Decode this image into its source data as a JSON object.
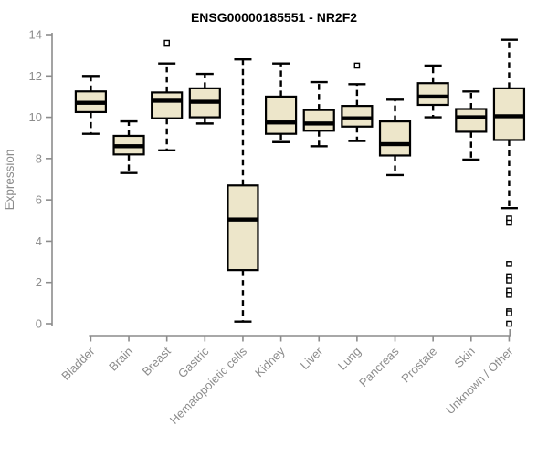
{
  "chart_data": {
    "type": "boxplot",
    "title": "ENSG00000185551 - NR2F2",
    "ylabel": "Expression",
    "xlabel": "",
    "ylim": [
      0,
      14
    ],
    "yticks": [
      0,
      2,
      4,
      6,
      8,
      10,
      12,
      14
    ],
    "grid": false,
    "legend": false,
    "categories": [
      "Bladder",
      "Brain",
      "Breast",
      "Gastric",
      "Hematopoietic cells",
      "Kidney",
      "Liver",
      "Lung",
      "Pancreas",
      "Prostate",
      "Skin",
      "Unknown / Other"
    ],
    "series": [
      {
        "category": "Bladder",
        "low": 9.2,
        "q1": 10.25,
        "median": 10.7,
        "q3": 11.25,
        "high": 12.0,
        "outliers": []
      },
      {
        "category": "Brain",
        "low": 7.3,
        "q1": 8.2,
        "median": 8.6,
        "q3": 9.1,
        "high": 9.8,
        "outliers": []
      },
      {
        "category": "Breast",
        "low": 8.4,
        "q1": 9.95,
        "median": 10.8,
        "q3": 11.2,
        "high": 12.6,
        "outliers": [
          13.6
        ]
      },
      {
        "category": "Gastric",
        "low": 9.7,
        "q1": 10.0,
        "median": 10.75,
        "q3": 11.4,
        "high": 12.1,
        "outliers": []
      },
      {
        "category": "Hematopoietic cells",
        "low": 0.1,
        "q1": 2.6,
        "median": 5.05,
        "q3": 6.7,
        "high": 12.8,
        "outliers": []
      },
      {
        "category": "Kidney",
        "low": 8.8,
        "q1": 9.2,
        "median": 9.75,
        "q3": 11.0,
        "high": 12.6,
        "outliers": []
      },
      {
        "category": "Liver",
        "low": 8.6,
        "q1": 9.35,
        "median": 9.7,
        "q3": 10.35,
        "high": 11.7,
        "outliers": []
      },
      {
        "category": "Lung",
        "low": 8.85,
        "q1": 9.55,
        "median": 9.95,
        "q3": 10.55,
        "high": 11.6,
        "outliers": [
          12.5
        ]
      },
      {
        "category": "Pancreas",
        "low": 7.2,
        "q1": 8.15,
        "median": 8.7,
        "q3": 9.8,
        "high": 10.85,
        "outliers": []
      },
      {
        "category": "Prostate",
        "low": 10.0,
        "q1": 10.6,
        "median": 11.0,
        "q3": 11.65,
        "high": 12.5,
        "outliers": []
      },
      {
        "category": "Skin",
        "low": 7.95,
        "q1": 9.3,
        "median": 10.0,
        "q3": 10.4,
        "high": 11.25,
        "outliers": []
      },
      {
        "category": "Unknown / Other",
        "low": 5.6,
        "q1": 8.9,
        "median": 10.05,
        "q3": 11.4,
        "high": 13.75,
        "outliers": [
          5.1,
          4.9,
          2.9,
          2.3,
          2.1,
          1.6,
          1.4,
          0.6,
          0.5,
          0.0
        ]
      }
    ],
    "colors": {
      "box_fill": "#EDE6CA",
      "box_stroke": "#000000",
      "median": "#000000",
      "whisker": "#000000",
      "axis": "#8C8C8C",
      "tick_label": "#8C8C8C",
      "title": "#000000",
      "background": "#FFFFFF"
    }
  }
}
